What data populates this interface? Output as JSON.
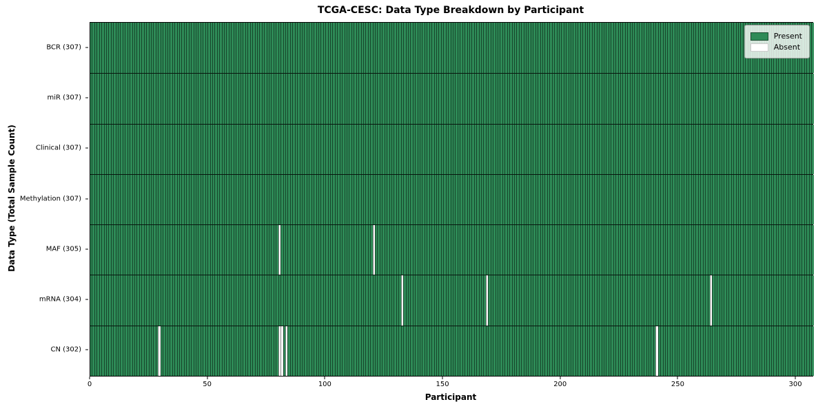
{
  "chart_data": {
    "type": "heatmap",
    "title": "TCGA-CESC: Data Type Breakdown by Participant",
    "xlabel": "Participant",
    "ylabel": "Data Type (Total Sample Count)",
    "n_participants": 307,
    "x_range": [
      0,
      307
    ],
    "x_ticks": [
      0,
      50,
      100,
      150,
      200,
      250,
      300
    ],
    "grid": false,
    "legend_position": "upper right",
    "legend": [
      {
        "label": "Present",
        "color": "#2e8b57"
      },
      {
        "label": "Absent",
        "color": "#ffffff"
      }
    ],
    "rows": [
      {
        "label": "BCR (307)",
        "data_type": "BCR",
        "present_count": 307,
        "absent_participants": []
      },
      {
        "label": "miR (307)",
        "data_type": "miR",
        "present_count": 307,
        "absent_participants": []
      },
      {
        "label": "Clinical (307)",
        "data_type": "Clinical",
        "present_count": 307,
        "absent_participants": []
      },
      {
        "label": "Methylation (307)",
        "data_type": "Methylation",
        "present_count": 307,
        "absent_participants": []
      },
      {
        "label": "MAF (305)",
        "data_type": "MAF",
        "present_count": 305,
        "absent_participants": [
          80,
          120
        ]
      },
      {
        "label": "mRNA (304)",
        "data_type": "mRNA",
        "present_count": 304,
        "absent_participants": [
          132,
          168,
          263
        ]
      },
      {
        "label": "CN (302)",
        "data_type": "CN",
        "present_count": 302,
        "absent_participants": [
          29,
          80,
          81,
          83,
          240
        ]
      }
    ],
    "colors": {
      "present": "#2e8b57",
      "absent": "#ffffff",
      "cell_edge": "rgba(0,0,0,0.5)",
      "row_separator": "#0a140c",
      "axis_spine": "#000000",
      "background": "#ffffff"
    }
  }
}
